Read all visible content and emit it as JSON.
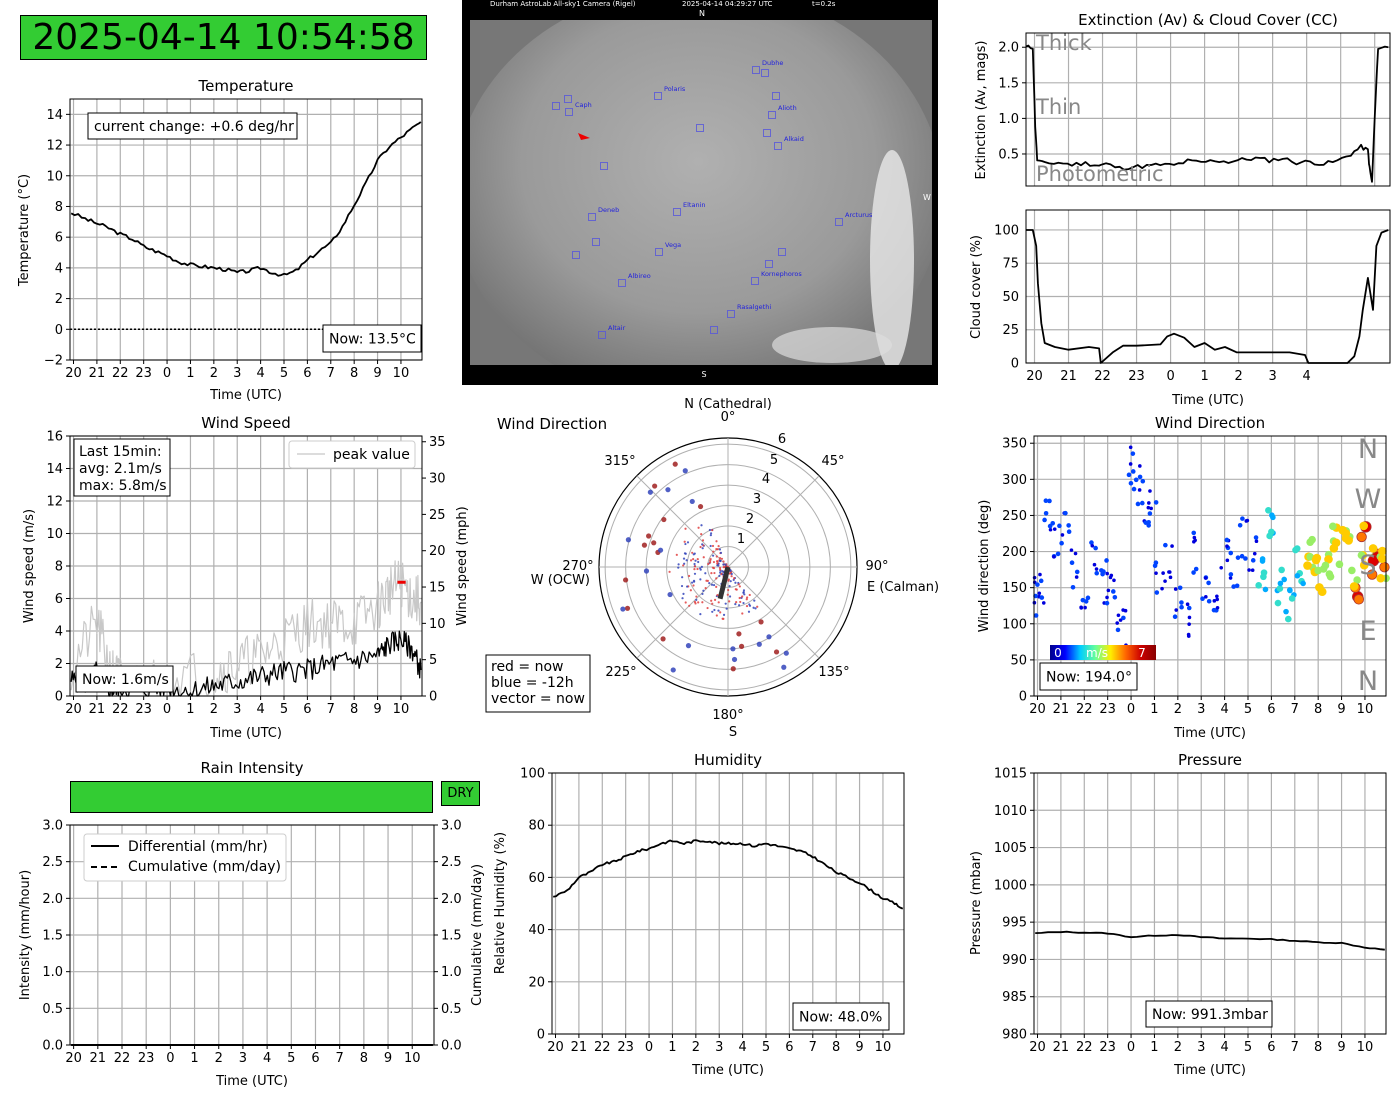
{
  "clock": "2025-04-14 10:54:58",
  "allsky": {
    "header": "Durham AstroLab All-sky1 Camera (Rigel)",
    "timestamp": "2025-04-14 04:29:27 UTC",
    "exposure": "t=0.2s",
    "north": "N",
    "south": "S",
    "west": "W",
    "stars": [
      "Caph",
      "Polaris",
      "Dubhe",
      "Alioth",
      "Alkaid",
      "Deneb",
      "Eltanin",
      "Arcturus",
      "Vega",
      "Albireo",
      "Kornephoros",
      "Rasalgethi",
      "Altair"
    ]
  },
  "time_ticks": [
    "20",
    "21",
    "22",
    "23",
    "0",
    "1",
    "2",
    "3",
    "4",
    "5",
    "6",
    "7",
    "8",
    "9",
    "10"
  ],
  "temperature": {
    "title": "Temperature",
    "ylabel": "Temperature (°C)",
    "xlabel": "Time (UTC)",
    "annotation": "current change: +0.6 deg/hr",
    "now": "Now: 13.5°C",
    "yticks": [
      "−2",
      "0",
      "2",
      "4",
      "6",
      "8",
      "10",
      "12",
      "14"
    ]
  },
  "extinction": {
    "title": "Extinction (Av) & Cloud Cover (CC)",
    "ylabel": "Extinction (Av, mags)",
    "yticks": [
      "0.5",
      "1.0",
      "1.5",
      "2.0"
    ],
    "zones": [
      "Thick",
      "Thin",
      "Photometric"
    ]
  },
  "cloud": {
    "ylabel": "Cloud cover (%)",
    "xlabel": "Time (UTC)",
    "yticks": [
      "0",
      "25",
      "50",
      "75",
      "100"
    ],
    "xticks": [
      "20",
      "21",
      "22",
      "23",
      "0",
      "1",
      "2",
      "3",
      "4"
    ]
  },
  "wind_speed": {
    "title": "Wind Speed",
    "ylabel": "Wind speed (m/s)",
    "ylabel2": "Wind speed (mph)",
    "xlabel": "Time (UTC)",
    "legend": "peak value",
    "stats": [
      "Last 15min:",
      "avg: 2.1m/s",
      "max: 5.8m/s"
    ],
    "now": "Now: 1.6m/s",
    "yticks": [
      "0",
      "2",
      "4",
      "6",
      "8",
      "10",
      "12",
      "14",
      "16"
    ],
    "yticks2": [
      "0",
      "5",
      "10",
      "15",
      "20",
      "25",
      "30",
      "35"
    ]
  },
  "wind_polar": {
    "title": "Wind Direction",
    "north": "N (Cathedral)",
    "south": "S",
    "east": "E (Calman)",
    "west": "W (OCW)",
    "angles": [
      "0°",
      "45°",
      "90°",
      "135°",
      "180°",
      "225°",
      "270°",
      "315°"
    ],
    "rings": [
      "1",
      "2",
      "3",
      "4",
      "5",
      "6"
    ],
    "legend": [
      "red = now",
      "blue = -12h",
      "vector = now"
    ]
  },
  "wind_dir": {
    "title": "Wind Direction",
    "ylabel": "Wind direction (deg)",
    "xlabel": "Time (UTC)",
    "yticks": [
      "0",
      "50",
      "100",
      "150",
      "200",
      "250",
      "300",
      "350"
    ],
    "compass": [
      "N",
      "W",
      "S",
      "E",
      "N"
    ],
    "colorbar": [
      "0",
      "m/s",
      "7"
    ],
    "now": "Now: 194.0°"
  },
  "rain": {
    "title": "Rain Intensity",
    "status": "DRY",
    "ylabel": "Intensity (mm/hour)",
    "ylabel2": "Cumulative (mm/day)",
    "xlabel": "Time (UTC)",
    "legend": [
      "Differential (mm/hr)",
      "Cumulative (mm/day)"
    ],
    "yticks": [
      "0.0",
      "0.5",
      "1.0",
      "1.5",
      "2.0",
      "2.5",
      "3.0"
    ]
  },
  "humidity": {
    "title": "Humidity",
    "ylabel": "Relative Humidity (%)",
    "xlabel": "Time (UTC)",
    "now": "Now: 48.0%",
    "yticks": [
      "0",
      "20",
      "40",
      "60",
      "80",
      "100"
    ]
  },
  "pressure": {
    "title": "Pressure",
    "ylabel": "Pressure (mbar)",
    "xlabel": "Time (UTC)",
    "now": "Now: 991.3mbar",
    "yticks": [
      "980",
      "985",
      "990",
      "995",
      "1000",
      "1005",
      "1010",
      "1015"
    ]
  },
  "chart_data": [
    {
      "id": "temperature",
      "type": "line",
      "title": "Temperature",
      "xlabel": "Time (UTC)",
      "ylabel": "Temperature (°C)",
      "ylim": [
        -2,
        15
      ],
      "grid": true,
      "x": [
        19.9,
        20.5,
        21,
        21.5,
        22,
        22.5,
        23,
        23.5,
        24,
        24.5,
        25,
        25.5,
        26,
        26.5,
        27,
        27.5,
        28,
        28.5,
        29,
        29.5,
        30,
        30.5,
        31,
        31.5,
        32,
        32.5,
        33,
        33.5,
        34,
        34.5,
        34.85
      ],
      "y": [
        7.6,
        7.2,
        6.9,
        6.6,
        6.2,
        5.9,
        5.4,
        5.1,
        4.8,
        4.4,
        4.2,
        4.1,
        4.0,
        3.9,
        3.7,
        3.8,
        4.0,
        3.7,
        3.5,
        3.8,
        4.5,
        5.1,
        5.6,
        6.7,
        8.1,
        9.5,
        11.0,
        11.9,
        12.5,
        13.1,
        13.5
      ]
    },
    {
      "id": "extinction",
      "type": "line",
      "title": "Extinction (Av) & Cloud Cover (CC)",
      "ylabel": "Extinction (Av, mags)",
      "ylim": [
        0.05,
        2.2
      ],
      "grid": true,
      "x": [
        19.75,
        19.95,
        20.02,
        20.08,
        20.3,
        20.7,
        21.1,
        21.5,
        21.9,
        22.1,
        22.5,
        22.9,
        23.3,
        23.7,
        24.1,
        24.5,
        24.9,
        25.3,
        25.7,
        26.1,
        26.5,
        26.9,
        27.3,
        27.7,
        28.1,
        28.5,
        28.9,
        29.3,
        29.6,
        29.8,
        29.85,
        29.92,
        30.0,
        30.1,
        30.4
      ],
      "y": [
        2.0,
        2.0,
        0.9,
        0.42,
        0.36,
        0.38,
        0.35,
        0.37,
        0.34,
        0.36,
        0.3,
        0.32,
        0.33,
        0.35,
        0.34,
        0.4,
        0.38,
        0.41,
        0.39,
        0.42,
        0.44,
        0.41,
        0.44,
        0.38,
        0.39,
        0.36,
        0.4,
        0.5,
        0.6,
        0.55,
        0.3,
        0.1,
        1.0,
        2.0,
        2.0
      ]
    },
    {
      "id": "cloud_cover",
      "type": "line",
      "ylabel": "Cloud cover (%)",
      "xlabel": "Time (UTC)",
      "ylim": [
        0,
        100
      ],
      "grid": true,
      "x": [
        19.75,
        19.95,
        20.05,
        20.1,
        20.2,
        20.3,
        20.6,
        21.0,
        21.6,
        21.9,
        21.95,
        22.3,
        22.6,
        23.0,
        23.7,
        23.9,
        24.1,
        24.4,
        24.7,
        25.0,
        25.3,
        25.6,
        25.95,
        26.4,
        26.9,
        27.5,
        27.95,
        28.05,
        28.3,
        28.6,
        29.2,
        29.4,
        29.55,
        29.65,
        29.8,
        29.95,
        30.05,
        30.2,
        30.4
      ],
      "y": [
        100,
        100,
        88,
        60,
        30,
        15,
        12,
        10,
        12,
        11,
        0,
        8,
        13,
        13,
        14,
        20,
        22,
        19,
        12,
        15,
        10,
        12,
        8,
        8,
        8,
        8,
        6,
        0,
        0,
        0,
        0,
        5,
        20,
        40,
        64,
        40,
        88,
        98,
        100
      ]
    },
    {
      "id": "wind_speed",
      "type": "line",
      "title": "Wind Speed",
      "xlabel": "Time (UTC)",
      "ylabel": "Wind speed (m/s)",
      "ylim": [
        0,
        16
      ],
      "grid": true,
      "series": [
        {
          "name": "peak value",
          "x": [
            19.9,
            21,
            21.6,
            22,
            24,
            26,
            27,
            28,
            29,
            30,
            31,
            32,
            33,
            33.5,
            34,
            34.5,
            34.85
          ],
          "y": [
            1.8,
            4.5,
            1.5,
            1.0,
            1.0,
            1.5,
            2.0,
            2.5,
            3.5,
            4.5,
            4.5,
            4.5,
            5.5,
            6.5,
            7.0,
            6.0,
            5.8
          ]
        },
        {
          "x": [
            19.9,
            20.5,
            21,
            21.6,
            22,
            23,
            24,
            25,
            26,
            27,
            28,
            29,
            30,
            31,
            32,
            33,
            33.5,
            34,
            34.5,
            34.85
          ],
          "y": [
            1.0,
            0.8,
            1.5,
            0.3,
            0.5,
            0.4,
            0.5,
            0.3,
            0.6,
            0.9,
            1.2,
            1.5,
            1.6,
            2.0,
            2.2,
            2.5,
            3.2,
            3.5,
            2.8,
            1.6
          ]
        }
      ]
    },
    {
      "id": "wind_polar",
      "type": "scatter",
      "title": "Wind Direction",
      "r_lim": [
        0,
        6
      ],
      "now_vector": {
        "direction_deg": 194,
        "speed": 1.6
      }
    },
    {
      "id": "wind_direction",
      "type": "scatter",
      "title": "Wind Direction",
      "xlabel": "Time (UTC)",
      "ylabel": "Wind direction (deg)",
      "ylim": [
        0,
        360
      ],
      "grid": true,
      "x": [
        19.9,
        20.1,
        20.4,
        20.8,
        21.2,
        21.6,
        22.0,
        22.4,
        22.8,
        23.1,
        23.4,
        23.8,
        24.0,
        24.3,
        24.6,
        24.9,
        25.2,
        25.6,
        26.0,
        26.4,
        26.8,
        27.2,
        27.6,
        28.0,
        28.4,
        28.8,
        29.2,
        29.6,
        30.0,
        30.4,
        30.8,
        31.2,
        31.6,
        32.0,
        32.4,
        32.8,
        33.2,
        33.6,
        34.0,
        34.4,
        34.8
      ],
      "y": [
        150,
        140,
        250,
        220,
        230,
        180,
        150,
        200,
        150,
        160,
        120,
        90,
        320,
        290,
        270,
        260,
        160,
        180,
        120,
        100,
        200,
        150,
        130,
        190,
        170,
        220,
        200,
        160,
        230,
        150,
        120,
        180,
        200,
        170,
        190,
        210,
        220,
        150,
        210,
        190,
        180
      ]
    },
    {
      "id": "rain",
      "type": "line",
      "title": "Rain Intensity",
      "xlabel": "Time (UTC)",
      "ylabel": "Intensity (mm/hour)",
      "ylim": [
        0,
        3
      ],
      "grid": true,
      "series": [
        {
          "name": "Differential (mm/hr)",
          "x": [
            19.9,
            34.85
          ],
          "y": [
            0,
            0
          ]
        },
        {
          "name": "Cumulative (mm/day)",
          "x": [
            19.9,
            34.85
          ],
          "y": [
            0,
            0
          ]
        }
      ]
    },
    {
      "id": "humidity",
      "type": "line",
      "title": "Humidity",
      "xlabel": "Time (UTC)",
      "ylabel": "Relative Humidity (%)",
      "ylim": [
        0,
        100
      ],
      "grid": true,
      "x": [
        19.9,
        20.5,
        21,
        21.5,
        22,
        22.5,
        23,
        23.5,
        24,
        24.5,
        25,
        25.5,
        26,
        26.5,
        27,
        27.5,
        28,
        28.5,
        29,
        29.5,
        30,
        30.5,
        31,
        31.5,
        32,
        32.5,
        33,
        33.5,
        34,
        34.5,
        34.85
      ],
      "y": [
        52.5,
        55,
        60,
        62,
        65,
        66,
        68,
        70,
        71,
        73,
        74,
        73,
        74,
        74,
        73,
        73,
        73,
        72,
        73,
        72,
        71,
        70,
        68,
        65,
        62,
        60,
        58,
        55,
        52,
        50,
        48
      ]
    },
    {
      "id": "pressure",
      "type": "line",
      "title": "Pressure",
      "xlabel": "Time (UTC)",
      "ylabel": "Pressure (mbar)",
      "ylim": [
        980,
        1015
      ],
      "grid": true,
      "x": [
        19.9,
        21,
        22,
        23,
        24,
        25,
        26,
        27,
        28,
        29,
        30,
        31,
        32,
        33,
        34,
        34.85
      ],
      "y": [
        993.5,
        993.7,
        993.6,
        993.5,
        993.0,
        993.2,
        993.3,
        993.0,
        992.8,
        992.8,
        992.7,
        992.5,
        992.3,
        992.2,
        991.6,
        991.3
      ]
    }
  ]
}
